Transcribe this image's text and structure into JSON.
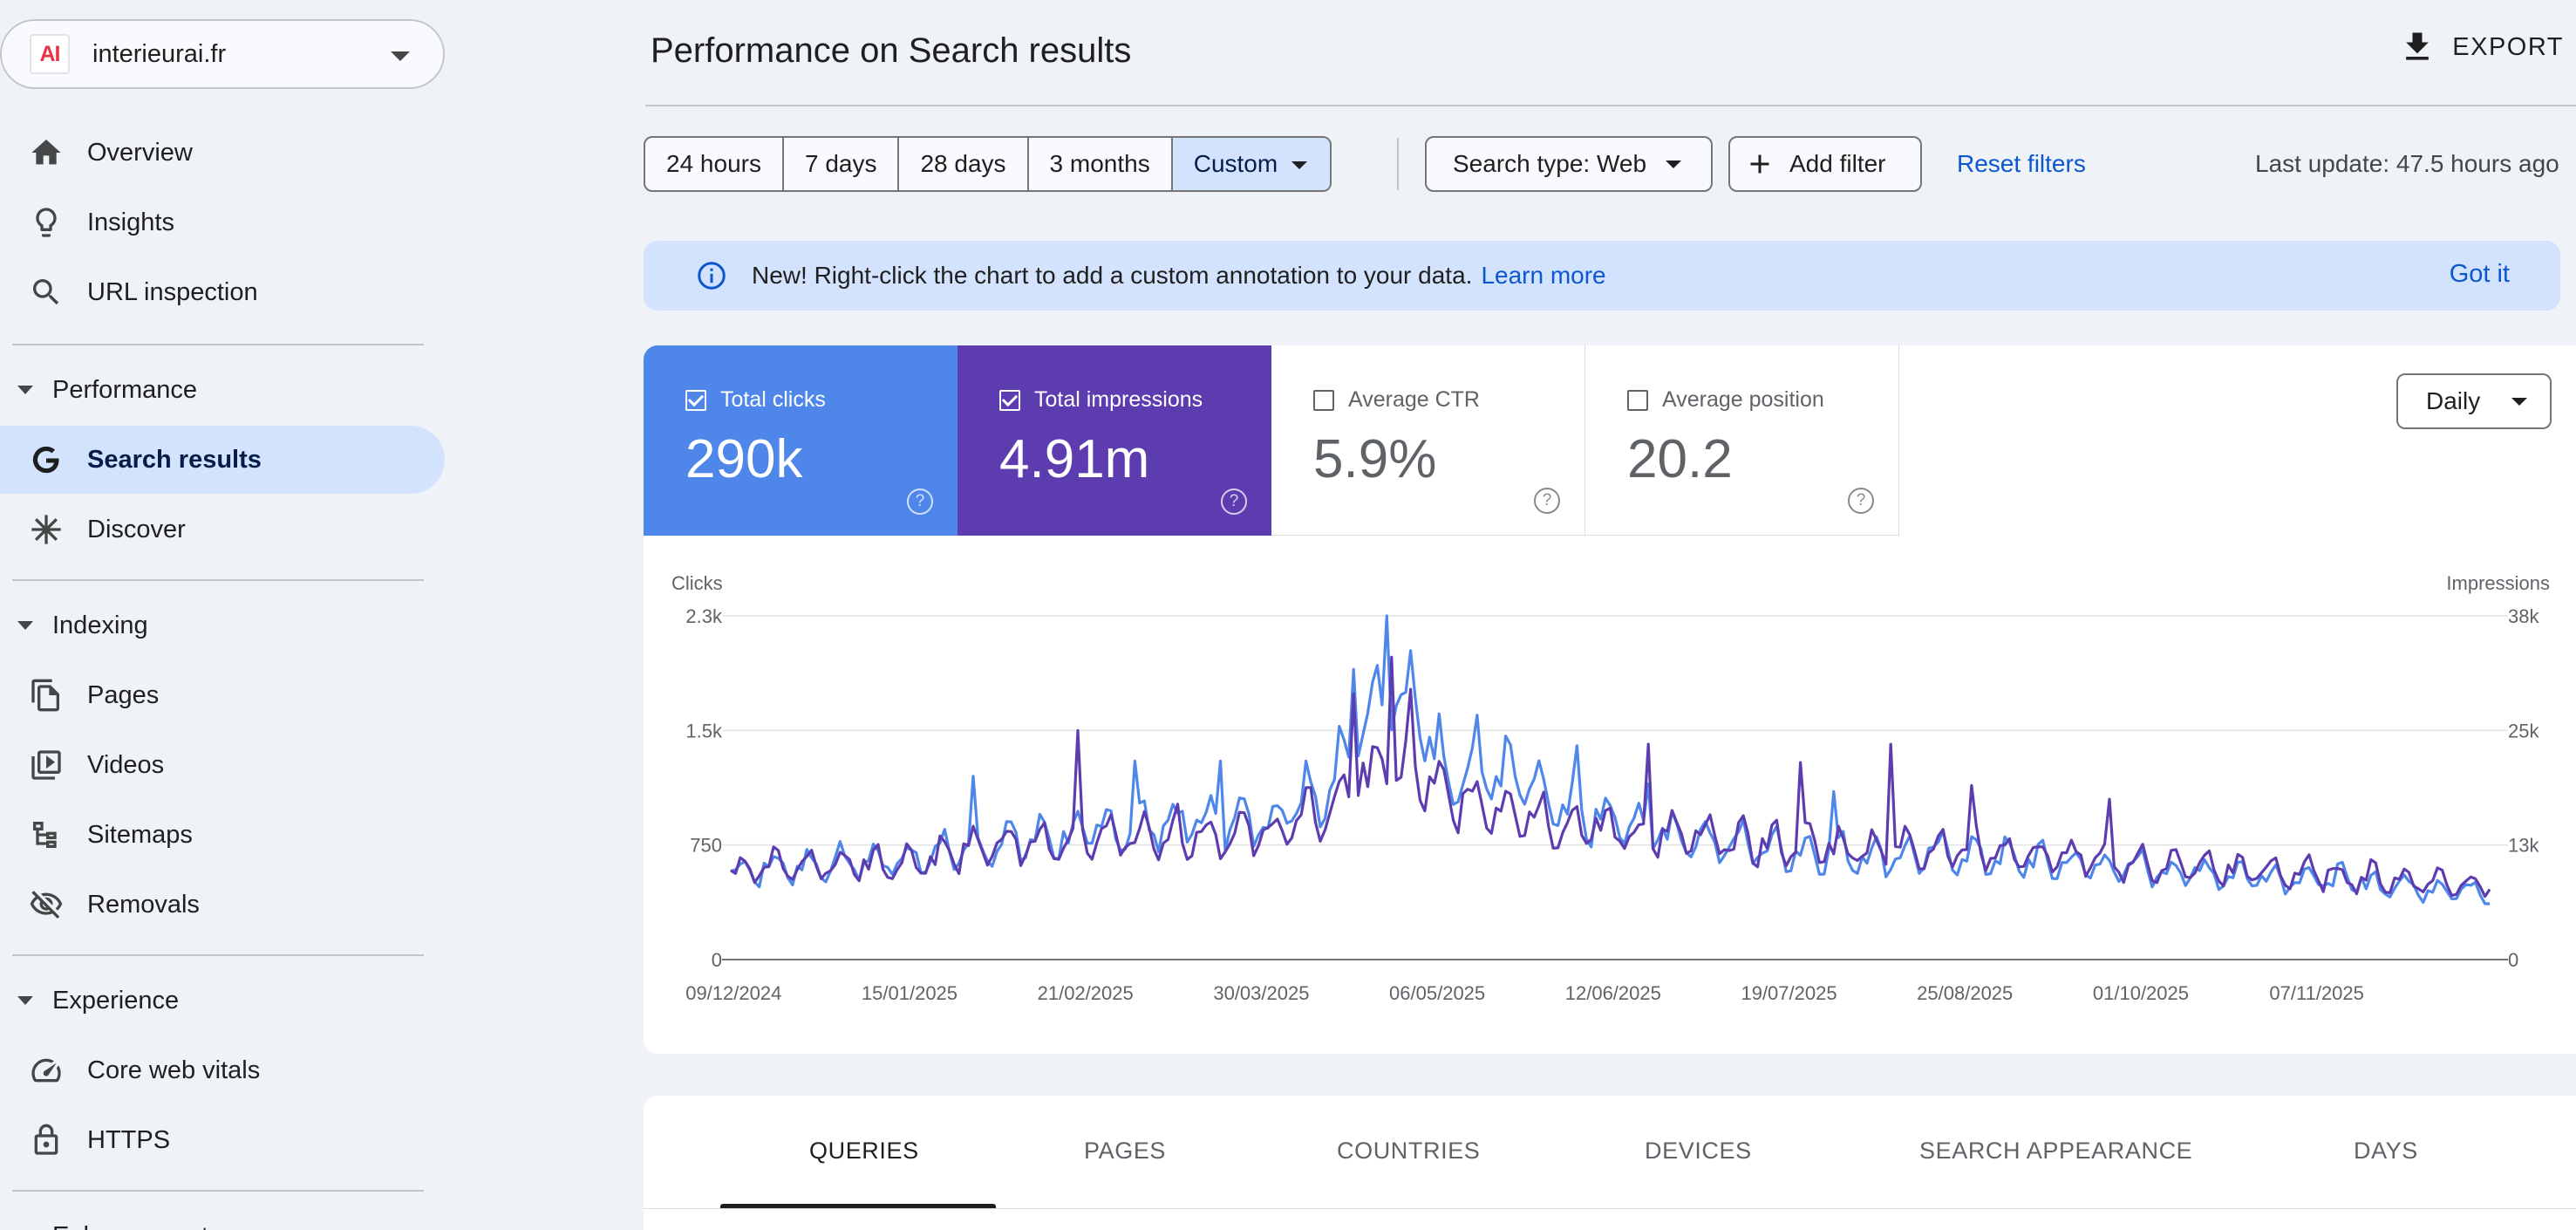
{
  "property": {
    "logo": "AI",
    "name": "interieurai.fr"
  },
  "nav": {
    "overview": "Overview",
    "insights": "Insights",
    "url_inspection": "URL inspection",
    "performance_section": "Performance",
    "search_results": "Search results",
    "discover": "Discover",
    "indexing_section": "Indexing",
    "pages": "Pages",
    "videos": "Videos",
    "sitemaps": "Sitemaps",
    "removals": "Removals",
    "experience_section": "Experience",
    "core_web_vitals": "Core web vitals",
    "https": "HTTPS",
    "enhancements_section": "Enhancements"
  },
  "header": {
    "title": "Performance on Search results",
    "export": "EXPORT"
  },
  "filters": {
    "ranges": [
      "24 hours",
      "7 days",
      "28 days",
      "3 months",
      "Custom"
    ],
    "selected_range": "Custom",
    "search_type": "Search type: Web",
    "add_filter": "Add filter",
    "reset": "Reset filters",
    "last_update": "Last update: 47.5 hours ago"
  },
  "banner": {
    "message": "New! Right-click the chart to add a custom annotation to your data.",
    "learn_more": "Learn more",
    "got_it": "Got it"
  },
  "metrics": {
    "clicks": {
      "label": "Total clicks",
      "value": "290k",
      "checked": true
    },
    "impressions": {
      "label": "Total impressions",
      "value": "4.91m",
      "checked": true
    },
    "ctr": {
      "label": "Average CTR",
      "value": "5.9%",
      "checked": false
    },
    "position": {
      "label": "Average position",
      "value": "20.2",
      "checked": false
    },
    "help": "?"
  },
  "granularity": "Daily",
  "tabs": [
    "QUERIES",
    "PAGES",
    "COUNTRIES",
    "DEVICES",
    "SEARCH APPEARANCE",
    "DAYS"
  ],
  "active_tab": "QUERIES",
  "colors": {
    "clicks": "#4e86ea",
    "impressions": "#5d3cb0",
    "link": "#0b57d0"
  },
  "chart_data": {
    "type": "line",
    "granularity": "daily",
    "x_start": "09/12/2024",
    "x_end": "14/12/2025",
    "x_ticks": [
      "09/12/2024",
      "15/01/2025",
      "21/02/2025",
      "30/03/2025",
      "06/05/2025",
      "12/06/2025",
      "19/07/2025",
      "25/08/2025",
      "01/10/2025",
      "07/11/2025"
    ],
    "left_axis": {
      "label": "Clicks",
      "ticks": [
        "0",
        "750",
        "1.5k",
        "2.3k"
      ],
      "values": [
        0,
        750,
        1500,
        2250
      ],
      "max": 2250
    },
    "right_axis": {
      "label": "Impressions",
      "ticks": [
        "0",
        "13k",
        "25k",
        "38k"
      ],
      "values": [
        0,
        12500,
        25000,
        37500
      ],
      "max": 37500
    },
    "series": [
      {
        "name": "Total clicks",
        "axis": "left",
        "color": "#4e86ea",
        "anchors_day": [
          0,
          18,
          37,
          55,
          74,
          92,
          111,
          125,
          135,
          145,
          150,
          165,
          175,
          185,
          203,
          220,
          240,
          258,
          275,
          295,
          315,
          335,
          351,
          370
        ],
        "anchors_value": [
          580,
          620,
          660,
          760,
          820,
          900,
          900,
          1100,
          1700,
          1650,
          1250,
          1200,
          950,
          900,
          800,
          720,
          680,
          690,
          640,
          600,
          560,
          530,
          480,
          450
        ],
        "spikes_day": [
          51,
          85,
          103,
          121,
          131,
          138,
          142,
          157,
          178,
          193,
          232
        ],
        "spikes_value": [
          1200,
          1300,
          1300,
          1300,
          1900,
          2250,
          1750,
          1600,
          1400,
          1150,
          1100
        ]
      },
      {
        "name": "Total impressions",
        "axis": "right",
        "color": "#5d3cb0",
        "anchors_day": [
          0,
          18,
          37,
          55,
          74,
          92,
          111,
          125,
          135,
          145,
          150,
          165,
          175,
          185,
          203,
          220,
          240,
          258,
          275,
          295,
          315,
          335,
          351,
          370
        ],
        "anchors_value": [
          10000,
          10300,
          10700,
          12300,
          13200,
          13800,
          13600,
          16000,
          21000,
          20000,
          17500,
          16700,
          14800,
          14200,
          13200,
          12500,
          12200,
          12300,
          11400,
          10500,
          9800,
          9300,
          8700,
          8300
        ],
        "spikes_day": [
          73,
          131,
          139,
          143,
          193,
          225,
          244,
          261,
          290
        ],
        "spikes_value": [
          25000,
          29000,
          33000,
          29500,
          23500,
          21500,
          23500,
          19000,
          17500
        ]
      }
    ]
  }
}
